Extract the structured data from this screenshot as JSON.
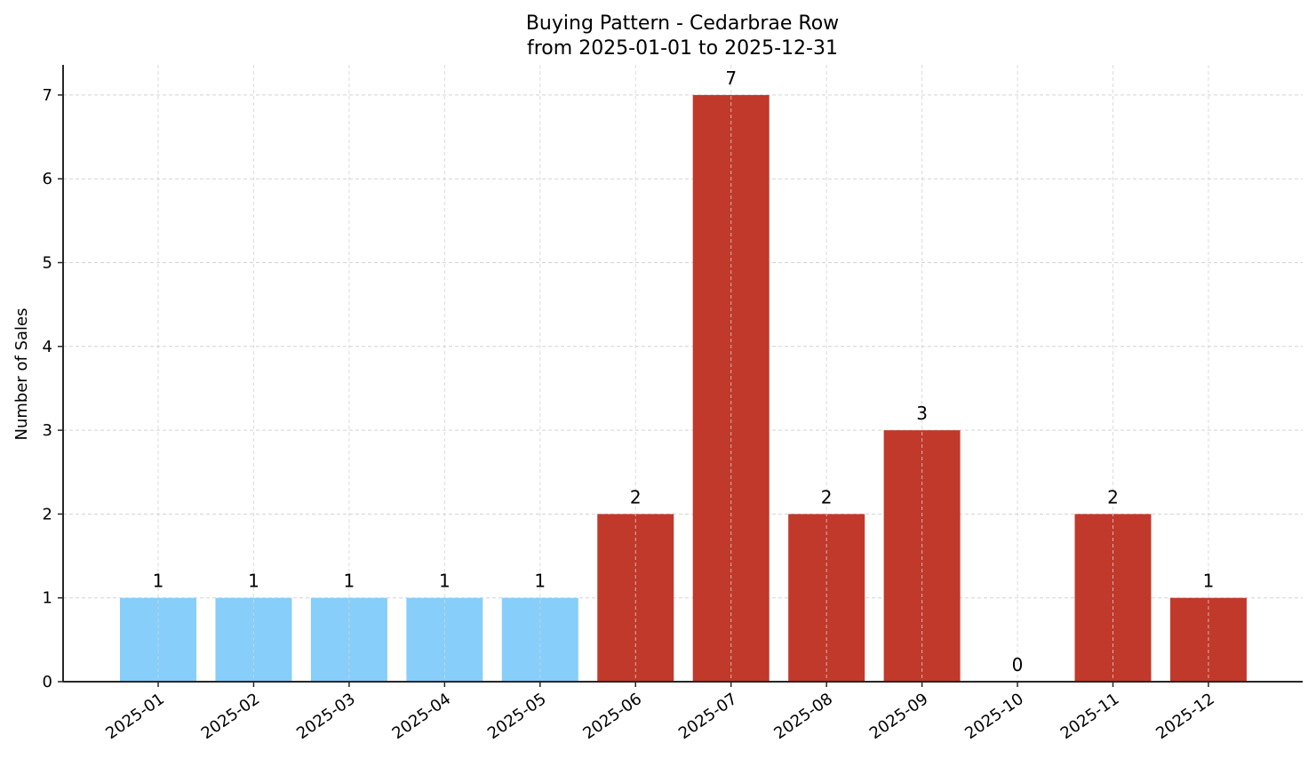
{
  "chart_data": {
    "type": "bar",
    "title": "Buying Pattern - Cedarbrae Row",
    "subtitle": "from 2025-01-01 to 2025-12-31",
    "xlabel": "",
    "ylabel": "Number of Sales",
    "categories": [
      "2025-01",
      "2025-02",
      "2025-03",
      "2025-04",
      "2025-05",
      "2025-06",
      "2025-07",
      "2025-08",
      "2025-09",
      "2025-10",
      "2025-11",
      "2025-12"
    ],
    "values": [
      1,
      1,
      1,
      1,
      1,
      2,
      7,
      2,
      3,
      0,
      2,
      1
    ],
    "bar_colors": [
      "#87cefa",
      "#87cefa",
      "#87cefa",
      "#87cefa",
      "#87cefa",
      "#c0392b",
      "#c0392b",
      "#c0392b",
      "#c0392b",
      "#c0392b",
      "#c0392b",
      "#c0392b"
    ],
    "ylim": [
      0,
      7.35
    ],
    "yticks": [
      0,
      1,
      2,
      3,
      4,
      5,
      6,
      7
    ],
    "grid": true,
    "legend": null
  },
  "colors": {
    "highlight_bar": "#87cefa",
    "default_bar": "#c0392b",
    "grid": "#d3d3d3",
    "axis": "#262626"
  }
}
